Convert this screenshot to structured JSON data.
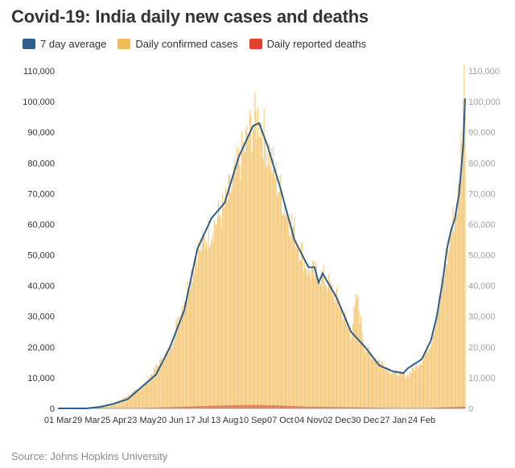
{
  "title": "Covid-19: India daily new cases and deaths",
  "source": "Source: Johns Hopkins University",
  "colors": {
    "average": "#2e5f8a",
    "cases": "#f2bc5b",
    "deaths": "#e0422f"
  },
  "legend": [
    {
      "label": "7 day average",
      "color": "#2e5f8a"
    },
    {
      "label": "Daily confirmed cases",
      "color": "#f2bc5b"
    },
    {
      "label": "Daily reported deaths",
      "color": "#e0422f"
    }
  ],
  "chart_data": {
    "type": "bar",
    "title": "Covid-19: India daily new cases and deaths",
    "xlabel": "",
    "ylabel": "",
    "ylim": [
      0,
      110000
    ],
    "grid": false,
    "legend_position": "top-left",
    "y_ticks": [
      "0",
      "10,000",
      "20,000",
      "30,000",
      "40,000",
      "50,000",
      "60,000",
      "70,000",
      "80,000",
      "90,000",
      "100,000",
      "110,000"
    ],
    "x_ticks": [
      "01 Mar",
      "29 Mar",
      "25 Apr",
      "23 May",
      "20 Jun",
      "17 Jul",
      "13 Aug",
      "10 Sep",
      "07 Oct",
      "04 Nov",
      "02 Dec",
      "30 Dec",
      "27 Jan",
      "24 Feb"
    ],
    "series": [
      {
        "name": "7 day average",
        "type": "line",
        "x": [
          "01 Mar",
          "29 Mar",
          "12 Apr",
          "25 Apr",
          "09 May",
          "23 May",
          "06 Jun",
          "20 Jun",
          "04 Jul",
          "17 Jul",
          "31 Jul",
          "13 Aug",
          "27 Aug",
          "10 Sep",
          "16 Sep",
          "24 Sep",
          "07 Oct",
          "21 Oct",
          "04 Nov",
          "10 Nov",
          "14 Nov",
          "18 Nov",
          "02 Dec",
          "16 Dec",
          "30 Dec",
          "13 Jan",
          "27 Jan",
          "06 Feb",
          "10 Feb",
          "24 Feb",
          "05 Mar",
          "11 Mar",
          "17 Mar",
          "21 Mar",
          "25 Mar",
          "29 Mar",
          "02 Apr",
          "06 Apr",
          "08 Apr"
        ],
        "values": [
          0,
          0,
          500,
          1500,
          3000,
          7000,
          11000,
          20000,
          32000,
          52000,
          62000,
          67000,
          82000,
          92000,
          93000,
          86000,
          72000,
          55000,
          46000,
          46000,
          41000,
          44000,
          36000,
          25000,
          20000,
          14000,
          12000,
          11500,
          13000,
          16000,
          22000,
          30000,
          42000,
          52000,
          58000,
          62000,
          70000,
          85000,
          101000
        ]
      },
      {
        "name": "Daily confirmed cases",
        "type": "bar",
        "x": [
          "01 Mar",
          "29 Mar",
          "25 Apr",
          "23 May",
          "20 Jun",
          "17 Jul",
          "13 Aug",
          "10 Sep",
          "16 Sep",
          "07 Oct",
          "04 Nov",
          "18 Nov",
          "02 Dec",
          "16 Dec",
          "22 Dec",
          "30 Dec",
          "13 Jan",
          "27 Jan",
          "10 Feb",
          "24 Feb",
          "05 Mar",
          "17 Mar",
          "25 Mar",
          "02 Apr",
          "06 Apr",
          "08 Apr"
        ],
        "values": [
          0,
          0,
          1500,
          7000,
          20000,
          52000,
          67000,
          95000,
          97000,
          72000,
          46000,
          44000,
          37000,
          25000,
          37000,
          20000,
          16000,
          12000,
          11000,
          16000,
          22000,
          42000,
          59000,
          72000,
          104000,
          113000
        ]
      },
      {
        "name": "Daily reported deaths",
        "type": "bar",
        "x": [
          "01 Mar",
          "29 Mar",
          "25 Apr",
          "23 May",
          "20 Jun",
          "17 Jul",
          "13 Aug",
          "10 Sep",
          "07 Oct",
          "04 Nov",
          "02 Dec",
          "30 Dec",
          "27 Jan",
          "24 Feb",
          "08 Apr"
        ],
        "values": [
          0,
          0,
          50,
          150,
          400,
          700,
          1000,
          1150,
          950,
          550,
          450,
          300,
          150,
          100,
          600
        ]
      }
    ]
  }
}
